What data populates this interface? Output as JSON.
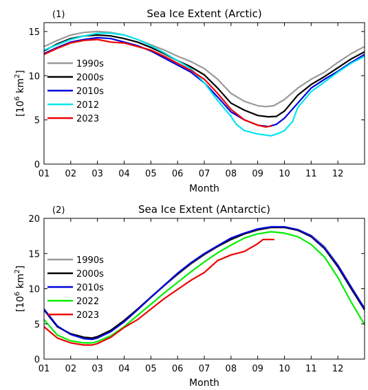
{
  "chart_data": [
    {
      "type": "line",
      "panel_label": "(1)",
      "title": "Sea Ice Extent (Arctic)",
      "xlabel": "Month",
      "ylabel_main": "[10",
      "ylabel_exp": "6",
      "ylabel_unit": " km",
      "ylabel_unit_exp": "2",
      "ylabel_close": "]",
      "xlim": [
        1,
        13
      ],
      "ylim": [
        0,
        16
      ],
      "xticks": [
        1,
        2,
        3,
        4,
        5,
        6,
        7,
        8,
        9,
        10,
        11,
        12
      ],
      "xtick_labels": [
        "01",
        "02",
        "03",
        "04",
        "05",
        "06",
        "07",
        "08",
        "09",
        "10",
        "11",
        "12"
      ],
      "yticks": [
        0,
        5,
        10,
        15
      ],
      "ytick_labels": [
        "0",
        "5",
        "10",
        "15"
      ],
      "grid": false,
      "legend_position": "left",
      "series": [
        {
          "name": "1990s",
          "color": "#999999",
          "x": [
            1,
            1.5,
            2,
            2.5,
            3,
            3.5,
            4,
            4.5,
            5,
            5.5,
            6,
            6.5,
            7,
            7.5,
            8,
            8.5,
            9,
            9.3,
            9.6,
            10,
            10.5,
            11,
            11.5,
            12,
            12.5,
            13
          ],
          "y": [
            13.3,
            14.0,
            14.6,
            14.9,
            15.0,
            14.9,
            14.6,
            14.1,
            13.5,
            12.9,
            12.2,
            11.6,
            10.8,
            9.6,
            8.0,
            7.1,
            6.6,
            6.5,
            6.6,
            7.3,
            8.6,
            9.6,
            10.4,
            11.5,
            12.5,
            13.3
          ]
        },
        {
          "name": "2000s",
          "color": "#000000",
          "x": [
            1,
            1.5,
            2,
            2.5,
            3,
            3.5,
            4,
            4.5,
            5,
            5.5,
            6,
            6.5,
            7,
            7.5,
            8,
            8.5,
            9,
            9.4,
            9.7,
            10,
            10.5,
            11,
            11.5,
            12,
            12.5,
            13
          ],
          "y": [
            12.8,
            13.6,
            14.2,
            14.5,
            14.6,
            14.5,
            14.2,
            13.8,
            13.2,
            12.5,
            11.7,
            11.0,
            10.1,
            8.6,
            6.9,
            6.1,
            5.5,
            5.35,
            5.4,
            6.0,
            7.8,
            9.0,
            9.9,
            10.9,
            11.9,
            12.7
          ]
        },
        {
          "name": "2010s",
          "color": "#0000dd",
          "x": [
            1,
            1.5,
            2,
            2.5,
            3,
            3.5,
            4,
            4.5,
            5,
            5.5,
            6,
            6.5,
            7,
            7.5,
            8,
            8.5,
            9,
            9.4,
            9.7,
            10,
            10.5,
            11,
            11.5,
            12,
            12.5,
            13
          ],
          "y": [
            12.5,
            13.2,
            13.8,
            14.1,
            14.3,
            14.2,
            13.8,
            13.4,
            12.8,
            12.0,
            11.2,
            10.4,
            9.2,
            7.6,
            5.9,
            5.0,
            4.4,
            4.25,
            4.5,
            5.2,
            6.9,
            8.6,
            9.6,
            10.5,
            11.5,
            12.4
          ]
        },
        {
          "name": "2012",
          "color": "#00e5ee",
          "x": [
            1,
            1.5,
            2,
            2.5,
            3,
            3.5,
            4,
            4.5,
            5,
            5.5,
            6,
            6.5,
            7,
            7.5,
            8,
            8.2,
            8.5,
            9,
            9.5,
            9.8,
            10,
            10.3,
            10.5,
            11,
            11.5,
            12,
            12.5,
            13
          ],
          "y": [
            12.9,
            13.5,
            14.1,
            14.5,
            14.8,
            14.8,
            14.6,
            14.1,
            13.4,
            12.6,
            11.7,
            10.8,
            9.2,
            7.2,
            5.4,
            4.5,
            3.8,
            3.4,
            3.2,
            3.5,
            3.8,
            4.8,
            6.4,
            8.2,
            9.3,
            10.4,
            11.4,
            12.2
          ]
        },
        {
          "name": "2023",
          "color": "#ee0000",
          "x": [
            1,
            1.5,
            2,
            2.5,
            3,
            3.5,
            4,
            4.5,
            5,
            5.5,
            6,
            6.5,
            7,
            7.5,
            8,
            8.5,
            9,
            9.3,
            9.5
          ],
          "y": [
            12.4,
            13.1,
            13.7,
            14.0,
            14.1,
            13.8,
            13.7,
            13.3,
            12.9,
            12.2,
            11.4,
            10.6,
            9.6,
            8.0,
            6.2,
            5.0,
            4.4,
            4.2,
            4.3
          ]
        }
      ]
    },
    {
      "type": "line",
      "panel_label": "(2)",
      "title": "Sea Ice Extent (Antarctic)",
      "xlabel": "Month",
      "ylabel_main": "[10",
      "ylabel_exp": "6",
      "ylabel_unit": " km",
      "ylabel_unit_exp": "2",
      "ylabel_close": "]",
      "xlim": [
        1,
        13
      ],
      "ylim": [
        0,
        20
      ],
      "xticks": [
        1,
        2,
        3,
        4,
        5,
        6,
        7,
        8,
        9,
        10,
        11,
        12
      ],
      "xtick_labels": [
        "01",
        "02",
        "03",
        "04",
        "05",
        "06",
        "07",
        "08",
        "09",
        "10",
        "11",
        "12"
      ],
      "yticks": [
        0,
        5,
        10,
        15,
        20
      ],
      "ytick_labels": [
        "0",
        "5",
        "10",
        "15",
        "20"
      ],
      "grid": false,
      "legend_position": "left",
      "series": [
        {
          "name": "1990s",
          "color": "#999999",
          "x": [
            1,
            1.5,
            2,
            2.5,
            2.8,
            3,
            3.5,
            4,
            4.5,
            5,
            5.5,
            6,
            6.5,
            7,
            7.5,
            8,
            8.5,
            9,
            9.5,
            10,
            10.5,
            11,
            11.5,
            12,
            12.5,
            13
          ],
          "y": [
            7.0,
            4.6,
            3.5,
            3.0,
            2.9,
            3.1,
            4.0,
            5.4,
            7.0,
            8.7,
            10.4,
            12.0,
            13.5,
            14.8,
            16.0,
            17.0,
            17.8,
            18.3,
            18.7,
            18.7,
            18.4,
            17.6,
            16.0,
            13.4,
            10.3,
            7.2
          ]
        },
        {
          "name": "2000s",
          "color": "#000000",
          "x": [
            1,
            1.5,
            2,
            2.5,
            2.8,
            3,
            3.5,
            4,
            4.5,
            5,
            5.5,
            6,
            6.5,
            7,
            7.5,
            8,
            8.5,
            9,
            9.5,
            10,
            10.5,
            11,
            11.5,
            12,
            12.5,
            13
          ],
          "y": [
            7.0,
            4.6,
            3.6,
            3.1,
            3.0,
            3.2,
            4.1,
            5.5,
            7.1,
            8.8,
            10.5,
            12.1,
            13.6,
            14.9,
            16.0,
            17.0,
            17.8,
            18.4,
            18.7,
            18.7,
            18.3,
            17.4,
            15.7,
            13.1,
            10.0,
            7.0
          ]
        },
        {
          "name": "2010s",
          "color": "#0000dd",
          "x": [
            1,
            1.5,
            2,
            2.5,
            2.8,
            3,
            3.5,
            4,
            4.5,
            5,
            5.5,
            6,
            6.5,
            7,
            7.5,
            8,
            8.5,
            9,
            9.5,
            10,
            10.5,
            11,
            11.5,
            12,
            12.5,
            13
          ],
          "y": [
            7.1,
            4.7,
            3.5,
            2.9,
            2.8,
            3.0,
            3.9,
            5.3,
            7.0,
            8.8,
            10.5,
            12.2,
            13.7,
            15.0,
            16.1,
            17.2,
            17.9,
            18.5,
            18.8,
            18.8,
            18.4,
            17.5,
            15.8,
            13.3,
            10.2,
            7.2
          ]
        },
        {
          "name": "2022",
          "color": "#00ee00",
          "x": [
            1,
            1.5,
            2,
            2.5,
            2.8,
            3,
            3.5,
            4,
            4.5,
            5,
            5.5,
            6,
            6.5,
            7,
            7.5,
            8,
            8.5,
            9,
            9.5,
            10,
            10.5,
            11,
            11.5,
            12,
            12.5,
            13
          ],
          "y": [
            5.6,
            3.4,
            2.6,
            2.3,
            2.3,
            2.5,
            3.3,
            4.6,
            6.2,
            7.8,
            9.4,
            10.9,
            12.4,
            13.8,
            15.1,
            16.2,
            17.2,
            17.8,
            18.1,
            17.9,
            17.4,
            16.3,
            14.5,
            11.6,
            8.1,
            4.9
          ]
        },
        {
          "name": "2023",
          "color": "#ee0000",
          "x": [
            1,
            1.5,
            2,
            2.5,
            2.8,
            3,
            3.5,
            4,
            4.5,
            5,
            5.5,
            6,
            6.5,
            7,
            7.5,
            8,
            8.5,
            9,
            9.2,
            9.6
          ],
          "y": [
            4.6,
            3.0,
            2.3,
            2.0,
            2.0,
            2.2,
            3.1,
            4.5,
            5.6,
            7.1,
            8.6,
            9.9,
            11.2,
            12.3,
            14.0,
            14.8,
            15.3,
            16.4,
            17.0,
            17.0
          ]
        }
      ]
    }
  ]
}
